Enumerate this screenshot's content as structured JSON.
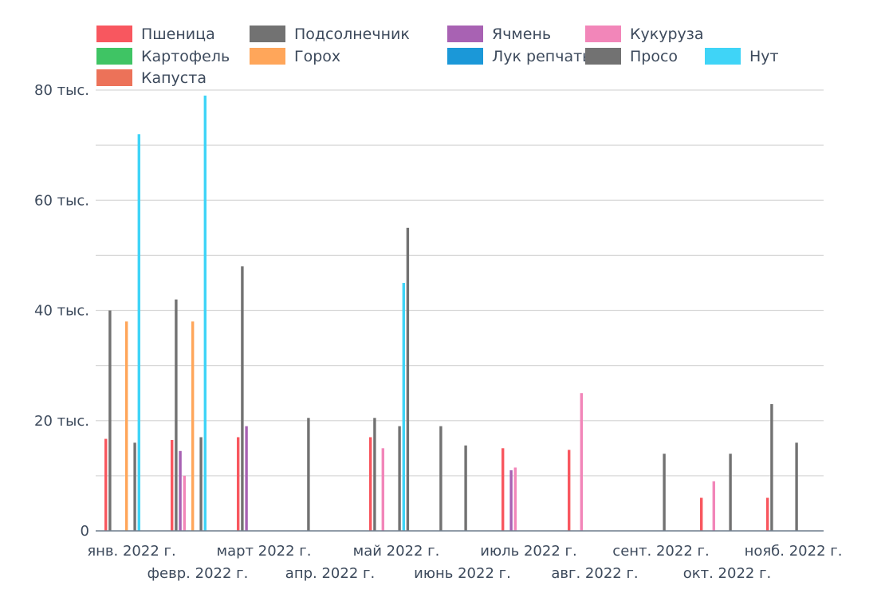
{
  "chart_data": {
    "type": "bar",
    "title": "",
    "xlabel": "",
    "ylabel": "",
    "ylim": [
      0,
      80000
    ],
    "yticks": [
      {
        "value": 0,
        "label": "0"
      },
      {
        "value": 20000,
        "label": "20 тыс."
      },
      {
        "value": 40000,
        "label": "40 тыс."
      },
      {
        "value": 60000,
        "label": "60 тыс."
      },
      {
        "value": 80000,
        "label": "80 тыс."
      }
    ],
    "grid_step": 10000,
    "grid": true,
    "legend_position": "top-left",
    "categories": [
      "янв. 2022 г.",
      "февр. 2022 г.",
      "март 2022 г.",
      "апр. 2022 г.",
      "май 2022 г.",
      "июнь 2022 г.",
      "июль 2022 г.",
      "авг. 2022 г.",
      "сент. 2022 г.",
      "окт. 2022 г.",
      "нояб. 2022 г."
    ],
    "series": [
      {
        "name": "Пшеница",
        "color": "#f8575f",
        "values": [
          16700,
          16500,
          17000,
          null,
          17000,
          null,
          15000,
          14700,
          null,
          6000,
          6000
        ]
      },
      {
        "name": "Подсолнечник",
        "color": "#727272",
        "values": [
          40000,
          42000,
          48000,
          20500,
          20500,
          19000,
          null,
          null,
          null,
          null,
          23000
        ]
      },
      {
        "name": "Ячмень",
        "color": "#a862b3",
        "values": [
          null,
          14500,
          19000,
          null,
          null,
          null,
          11000,
          null,
          null,
          null,
          null
        ]
      },
      {
        "name": "Кукуруза",
        "color": "#f286b9",
        "values": [
          null,
          10000,
          null,
          null,
          15000,
          null,
          11500,
          25000,
          null,
          9000,
          null
        ]
      },
      {
        "name": "Картофель",
        "color": "#3fc464",
        "values": [
          null,
          null,
          null,
          null,
          null,
          null,
          null,
          null,
          null,
          null,
          null
        ]
      },
      {
        "name": "Горох",
        "color": "#ffa65a",
        "values": [
          38000,
          38000,
          null,
          null,
          null,
          null,
          null,
          null,
          null,
          null,
          null
        ]
      },
      {
        "name": "Лук репчатый",
        "color": "#1b98d8",
        "values": [
          null,
          null,
          null,
          null,
          null,
          null,
          null,
          null,
          null,
          null,
          null
        ]
      },
      {
        "name": "Просо",
        "color": "#727272",
        "values": [
          16000,
          17000,
          null,
          null,
          19000,
          15500,
          null,
          null,
          14000,
          14000,
          16000
        ]
      },
      {
        "name": "Нут",
        "color": "#3fd4f7",
        "values": [
          72000,
          79000,
          null,
          null,
          45000,
          null,
          null,
          null,
          null,
          null,
          null
        ]
      },
      {
        "name": "Капуста",
        "color": "#ec7259",
        "values": [
          null,
          null,
          null,
          null,
          null,
          null,
          null,
          null,
          null,
          null,
          null
        ]
      }
    ],
    "misaligned_points": [
      {
        "series": "Подсолнечник",
        "category": "май 2022 г.",
        "value": 55000,
        "note_offset": "between май and июнь"
      }
    ]
  }
}
